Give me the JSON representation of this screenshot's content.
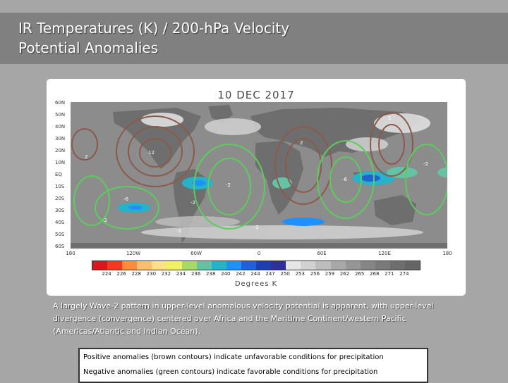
{
  "title_lines": [
    "IR Temperatures (K) / 200-hPa Velocity",
    "Potential Anomalies"
  ],
  "map": {
    "date": "10 DEC 2017",
    "lat_labels": [
      "60N",
      "50N",
      "40N",
      "30N",
      "20N",
      "10N",
      "EQ",
      "10S",
      "20S",
      "30S",
      "40S",
      "50S",
      "60S"
    ],
    "lon_labels": [
      "180",
      "120W",
      "60W",
      "0",
      "60E",
      "120E",
      "180"
    ],
    "units_label": "Degrees K",
    "colorbar": {
      "labels": [
        "224",
        "226",
        "228",
        "230",
        "232",
        "234",
        "236",
        "238",
        "240",
        "242",
        "244",
        "247",
        "250",
        "253",
        "256",
        "259",
        "262",
        "265",
        "268",
        "271",
        "274"
      ],
      "colors": [
        "#d7191c",
        "#f03b20",
        "#fd8d3c",
        "#fdbf6f",
        "#ffe08a",
        "#f0f060",
        "#a6d96a",
        "#66c2a5",
        "#26b3c9",
        "#1e90ff",
        "#1f62d6",
        "#1d3fb0",
        "#2f2f9a",
        "#e6e6e6",
        "#d2d2d2",
        "#bdbdbd",
        "#a8a8a8",
        "#969696",
        "#868686",
        "#7a7a7a",
        "#6e6e6e",
        "#646464"
      ],
      "ocean_color": "#8c8c8c",
      "positive_contour_color": "#8b5a4a",
      "negative_contour_color": "#5ccc5c"
    },
    "contour_labels": [
      "12",
      "-2",
      "-6",
      "-2",
      "-6",
      "-2",
      "2",
      "-2",
      "2",
      "-2",
      "2",
      "-2"
    ]
  },
  "caption": "A largely Wave-2 pattern in upper-level anomalous velocity potential is apparent, with upper-level divergence (convergence) centered over Africa and the Maritime Continent/western Pacific (Americas/Atlantic and Indian Ocean).",
  "legend": {
    "positive": "Positive anomalies (brown contours) indicate unfavorable conditions for precipitation",
    "negative": "Negative anomalies (green contours) indicate favorable conditions for precipitation"
  }
}
